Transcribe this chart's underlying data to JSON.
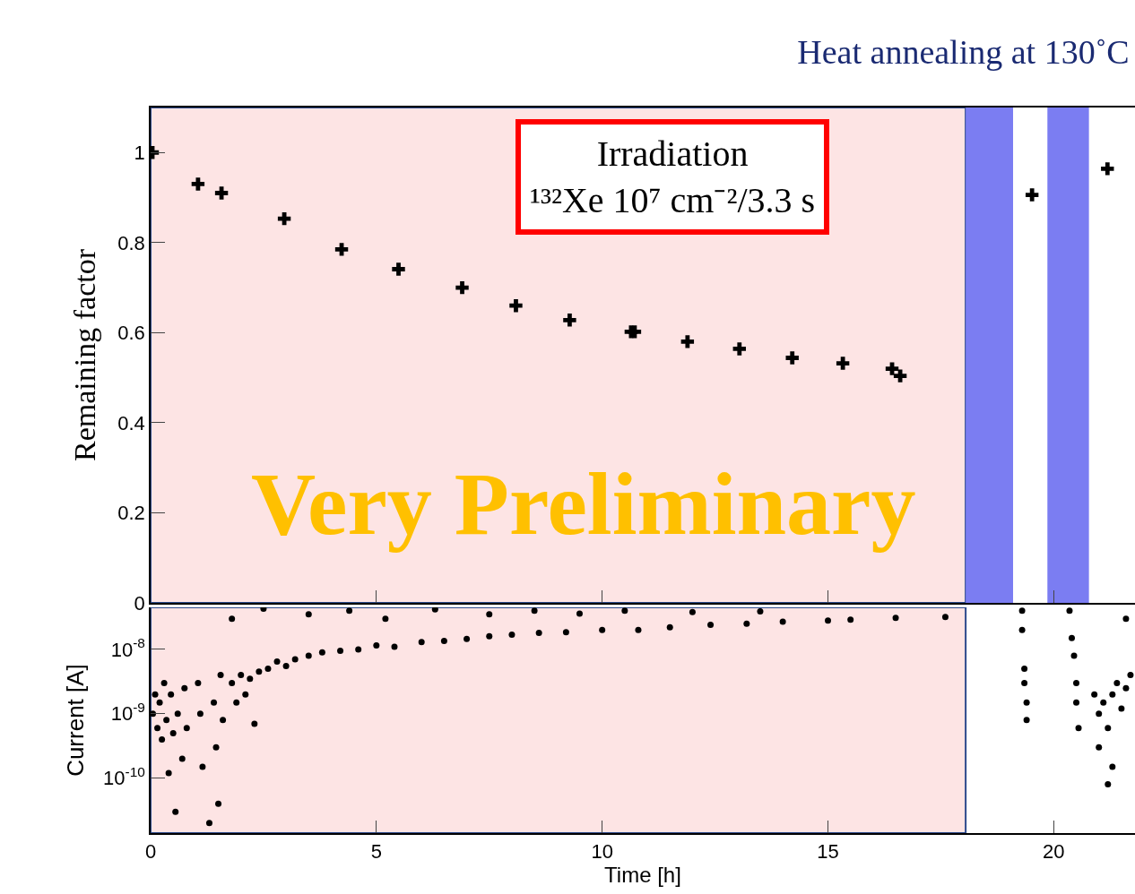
{
  "chart_data": [
    {
      "type": "scatter",
      "title": "Heat annealing at 130˚C",
      "ylabel": "Remaining factor",
      "tick_labels": "y",
      "marker": "cross",
      "x": [
        0.04,
        1.05,
        1.57,
        2.96,
        4.23,
        5.49,
        6.9,
        8.09,
        9.28,
        10.64,
        10.72,
        11.89,
        13.04,
        14.21,
        15.33,
        16.42,
        16.6,
        19.52,
        21.19
      ],
      "color": "#000000",
      "values": [
        1.0,
        0.93,
        0.91,
        0.853,
        0.785,
        0.741,
        0.7,
        0.66,
        0.628,
        0.602,
        0.602,
        0.58,
        0.564,
        0.544,
        0.532,
        0.52,
        0.504,
        0.906,
        0.964
      ],
      "xlim": [
        0,
        21.8
      ],
      "xticks": [
        0,
        5,
        10,
        15,
        20
      ],
      "ylim": [
        0,
        1.1
      ],
      "yticks": [
        0,
        0.2,
        0.4,
        0.6,
        0.8,
        1
      ],
      "bands": [
        {
          "axis": "x",
          "from": 0,
          "to": 18.05,
          "color": "#fde4e4"
        },
        {
          "axis": "x",
          "from": 18.05,
          "to": 19.1,
          "color": "#7b7df2"
        },
        {
          "axis": "x",
          "from": 19.86,
          "to": 20.78,
          "color": "#7b7df2"
        }
      ],
      "annotations": [
        "Irradiation\n¹³²Xe 10⁷ cm⁻²/3.3 s",
        "Very Preliminary"
      ]
    },
    {
      "type": "scatter",
      "xlabel": "Time [h]",
      "ylabel": "Current [A]",
      "log": true,
      "marker": "circle",
      "x": [
        0.05,
        0.1,
        0.15,
        0.2,
        0.25,
        0.3,
        0.35,
        0.4,
        0.45,
        0.5,
        0.55,
        0.6,
        0.7,
        0.75,
        0.8,
        1.05,
        1.1,
        1.15,
        1.3,
        1.4,
        1.45,
        1.5,
        1.55,
        1.6,
        1.8,
        1.9,
        2.0,
        2.1,
        2.2,
        2.3,
        2.4,
        2.6,
        2.8,
        3.0,
        3.2,
        3.5,
        3.8,
        4.2,
        4.6,
        5.0,
        5.4,
        6.0,
        6.5,
        7.0,
        7.5,
        8.0,
        8.6,
        9.2,
        10.0,
        10.8,
        11.5,
        12.4,
        13.2,
        14.0,
        15.0,
        15.5,
        16.5,
        17.6,
        3.5,
        4.4,
        5.2,
        6.3,
        7.5,
        8.5,
        9.5,
        10.5,
        12,
        13.5,
        2.5,
        1.8,
        19.3,
        19.3,
        19.35,
        19.35,
        19.4,
        19.4,
        20.35,
        20.4,
        20.45,
        20.5,
        20.5,
        20.55,
        20.9,
        21.0,
        21.0,
        21.1,
        21.2,
        21.2,
        21.3,
        21.4,
        21.5,
        21.6,
        21.7,
        21.6,
        21.3
      ],
      "color": "#000000",
      "values": [
        1e-09,
        2e-09,
        6e-10,
        1.5e-09,
        4e-10,
        3e-09,
        8e-10,
        1.2e-10,
        2e-09,
        5e-10,
        3e-11,
        1e-09,
        2e-10,
        2.5e-09,
        6e-10,
        3e-09,
        1e-09,
        1.5e-10,
        2e-11,
        1.5e-09,
        3e-10,
        4e-11,
        4e-09,
        8e-10,
        3e-09,
        1.5e-09,
        4e-09,
        2e-09,
        3.5e-09,
        7e-10,
        4.5e-09,
        5e-09,
        6.5e-09,
        5.5e-09,
        7e-09,
        8e-09,
        9e-09,
        9.5e-09,
        1e-08,
        1.15e-08,
        1.1e-08,
        1.3e-08,
        1.35e-08,
        1.45e-08,
        1.6e-08,
        1.7e-08,
        1.8e-08,
        1.85e-08,
        2e-08,
        2e-08,
        2.2e-08,
        2.4e-08,
        2.5e-08,
        2.7e-08,
        2.8e-08,
        2.9e-08,
        3.1e-08,
        3.2e-08,
        3.5e-08,
        4e-08,
        3e-08,
        4.2e-08,
        3.5e-08,
        4e-08,
        3.6e-08,
        4e-08,
        3.8e-08,
        3.9e-08,
        4.3e-08,
        3e-08,
        4e-08,
        2e-08,
        5e-09,
        3e-09,
        1.5e-09,
        8e-10,
        4e-08,
        1.5e-08,
        8e-09,
        3e-09,
        1.5e-09,
        6e-10,
        2e-09,
        1e-09,
        3e-10,
        1.5e-09,
        6e-10,
        8e-11,
        2e-09,
        3e-09,
        1.2e-09,
        2.5e-09,
        4e-09,
        3e-08,
        1.5e-10
      ],
      "xlim": [
        0,
        21.8
      ],
      "xticks": [
        0,
        5,
        10,
        15,
        20
      ],
      "ylim": [
        1.4e-11,
        4.5e-08
      ],
      "yticks": [
        {
          "value": 1e-10,
          "label": "10$^{-10}$"
        },
        {
          "value": 1e-09,
          "label": "10$^{-9}$"
        },
        {
          "value": 1e-08,
          "label": "10$^{-8}$"
        }
      ],
      "bands": [
        {
          "axis": "x",
          "from": 0,
          "to": 18.05,
          "color": "#fde4e4"
        }
      ]
    }
  ]
}
